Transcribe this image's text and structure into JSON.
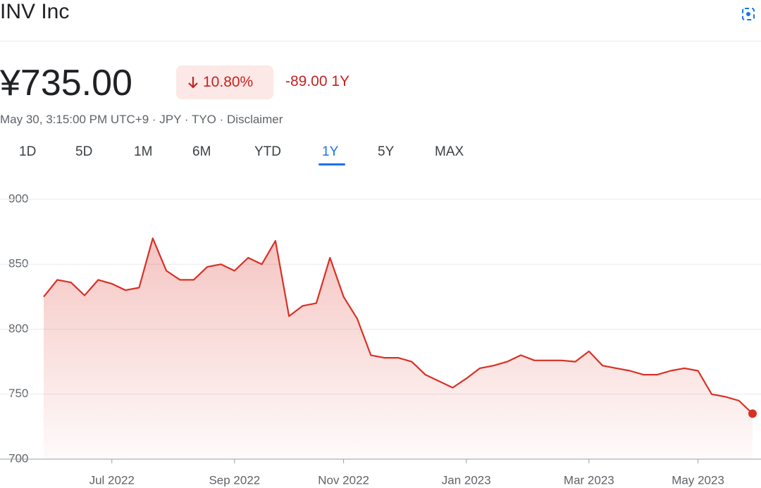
{
  "header": {
    "title": "INV Inc",
    "price": "¥735.00",
    "change_percent": "10.80%",
    "change": "-89.00 1Y",
    "subtitle": "May 30, 3:15:00 PM UTC+9 · JPY · TYO · Disclaimer",
    "tabs": [
      "1D",
      "5D",
      "1M",
      "6M",
      "YTD",
      "1Y",
      "5Y",
      "MAX"
    ]
  },
  "chart_data": {
    "type": "line",
    "color": "#d93025",
    "grid": true,
    "ylim": [
      700,
      900
    ],
    "yticks": [
      700,
      750,
      800,
      850,
      900
    ],
    "categories": [
      null,
      null,
      null,
      null,
      null,
      "Jul 2022",
      null,
      null,
      null,
      null,
      null,
      null,
      null,
      null,
      "Sep 2022",
      null,
      null,
      null,
      null,
      null,
      null,
      null,
      "Nov 2022",
      null,
      null,
      null,
      null,
      null,
      null,
      null,
      null,
      "Jan 2023",
      null,
      null,
      null,
      null,
      null,
      null,
      null,
      null,
      "Mar 2023",
      null,
      null,
      null,
      null,
      null,
      null,
      null,
      "May 2023",
      null,
      null,
      null,
      null
    ],
    "values": [
      825,
      838,
      836,
      826,
      838,
      835,
      830,
      832,
      870,
      845,
      838,
      838,
      848,
      850,
      845,
      855,
      850,
      868,
      810,
      818,
      820,
      855,
      825,
      808,
      780,
      778,
      778,
      775,
      765,
      760,
      755,
      762,
      770,
      772,
      775,
      780,
      776,
      776,
      776,
      775,
      783,
      772,
      770,
      768,
      765,
      765,
      768,
      770,
      768,
      750,
      748,
      745,
      735
    ]
  }
}
